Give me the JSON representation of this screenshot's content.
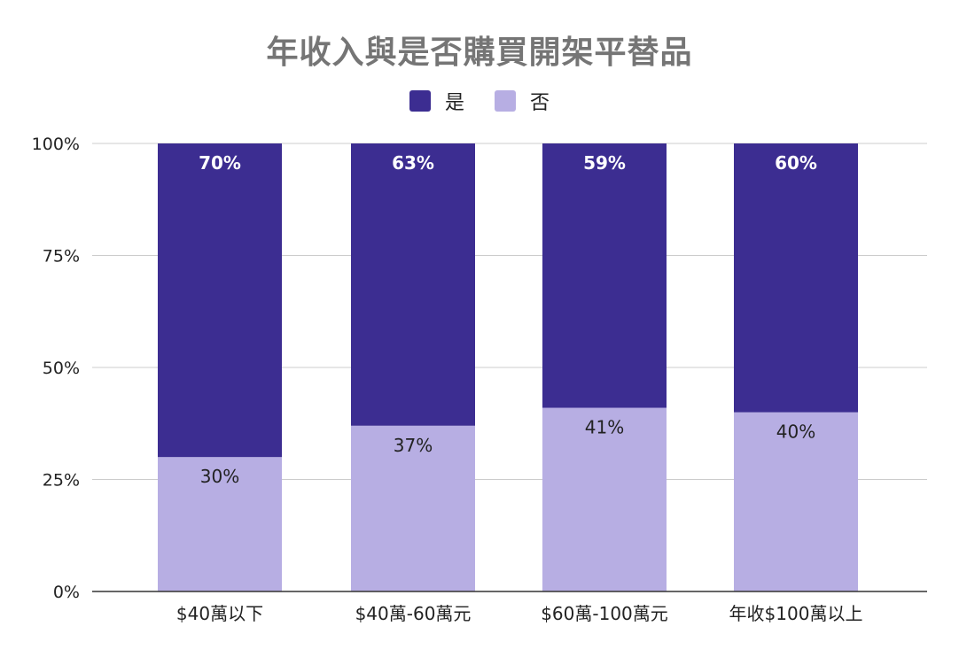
{
  "chart_data": {
    "type": "bar",
    "stacked": true,
    "orientation": "vertical",
    "title": "年收入與是否購買開架平替品",
    "xlabel": "",
    "ylabel": "",
    "categories": [
      "$40萬以下",
      "$40萬-60萬元",
      "$60萬-100萬元",
      "年收$100萬以上"
    ],
    "series": [
      {
        "name": "否",
        "values": [
          30,
          37,
          41,
          40
        ],
        "labels": [
          "30%",
          "37%",
          "41%",
          "40%"
        ],
        "color": "#b7aee3"
      },
      {
        "name": "是",
        "values": [
          70,
          63,
          59,
          60
        ],
        "labels": [
          "70%",
          "63%",
          "59%",
          "60%"
        ],
        "color": "#3c2d91"
      }
    ],
    "ylim": [
      0,
      100
    ],
    "yticks": [
      0,
      25,
      50,
      75,
      100
    ],
    "ytick_labels": [
      "0%",
      "25%",
      "50%",
      "75%",
      "100%"
    ],
    "grid": true,
    "legend": {
      "position": "top",
      "entries": [
        "是",
        "否"
      ]
    }
  },
  "colors": {
    "yes": "#3c2d91",
    "no": "#b7aee3",
    "grid": "#cccccc",
    "axis": "#333333",
    "title": "#757575"
  }
}
